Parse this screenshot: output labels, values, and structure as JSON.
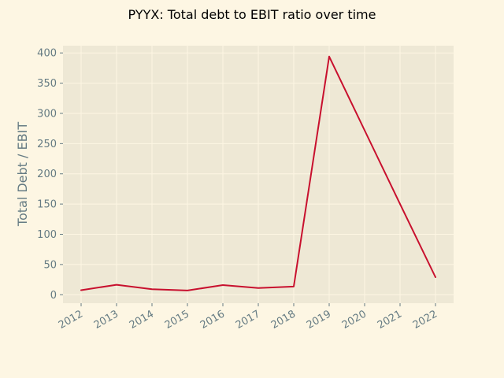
{
  "chart_data": {
    "type": "line",
    "title": "PYYX: Total debt to EBIT ratio over time",
    "xlabel": "",
    "ylabel": "Total Debt / EBIT",
    "categories": [
      "2012",
      "2013",
      "2014",
      "2015",
      "2016",
      "2017",
      "2018",
      "2019",
      "2020",
      "2021",
      "2022"
    ],
    "series": [
      {
        "values": [
          7.5,
          16.5,
          9,
          7,
          16,
          11,
          13.5,
          394,
          272,
          150,
          29
        ]
      }
    ],
    "ylim": [
      -14,
      412
    ],
    "yticks": [
      0,
      50,
      100,
      150,
      200,
      250,
      300,
      350,
      400
    ],
    "grid": true,
    "legend": "none",
    "colors": {
      "figure_background": "#fdf6e3",
      "plot_background": "#eee8d5",
      "grid": "#fdf6e3",
      "line": "#c8102e",
      "tick_text": "#657b83",
      "title_text": "#000000"
    }
  }
}
